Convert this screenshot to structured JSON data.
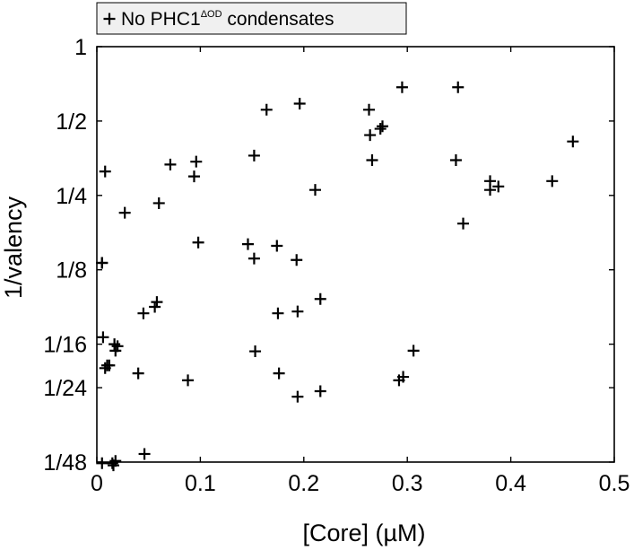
{
  "chart_data": {
    "type": "scatter",
    "xlabel": "[Core] (µM)",
    "ylabel": "1/valency",
    "xlim": [
      0,
      0.5
    ],
    "y_scale": "log",
    "y_tick_valency": [
      1,
      2,
      4,
      8,
      16,
      24,
      48
    ],
    "x_ticks": [
      "0",
      "0.1",
      "0.2",
      "0.3",
      "0.4",
      "0.5"
    ],
    "y_ticks": [
      "1",
      "1/2",
      "1/4",
      "1/8",
      "1/16",
      "1/24",
      "1/48"
    ],
    "grid": false,
    "legend": {
      "position": "top-left",
      "marker": "+",
      "text_before": "No PHC1",
      "superscript": "ΔOD",
      "text_after": " condensates"
    },
    "marker": "+",
    "color": "#000000",
    "series": [
      {
        "x": [
          0.005,
          0.015,
          0.016,
          0.018,
          0.046,
          0.006,
          0.008,
          0.01,
          0.012,
          0.017,
          0.02,
          0.018,
          0.04,
          0.088,
          0.153,
          0.176,
          0.194,
          0.216,
          0.292,
          0.296,
          0.306,
          0.005,
          0.045,
          0.056,
          0.058,
          0.175,
          0.194,
          0.216,
          0.005,
          0.098,
          0.146,
          0.152,
          0.174,
          0.193,
          0.027,
          0.06,
          0.008,
          0.071,
          0.094,
          0.096,
          0.152,
          0.211,
          0.266,
          0.347,
          0.38,
          0.38,
          0.388,
          0.354,
          0.44,
          0.164,
          0.196,
          0.263,
          0.264,
          0.274,
          0.276,
          0.295,
          0.349,
          0.46
        ],
        "valency": [
          48.5,
          48.5,
          49.5,
          47.5,
          44.5,
          15.0,
          20.0,
          19.5,
          19.5,
          16.0,
          16.3,
          17.0,
          21.0,
          22.4,
          17.1,
          21.0,
          26.1,
          24.8,
          22.4,
          21.7,
          17.0,
          7.5,
          12.0,
          11.3,
          10.8,
          12.0,
          11.8,
          10.5,
          7.5,
          6.2,
          6.3,
          7.2,
          6.4,
          7.3,
          4.7,
          4.3,
          3.2,
          3.0,
          3.35,
          2.92,
          2.76,
          3.8,
          2.88,
          2.88,
          3.5,
          3.8,
          3.68,
          5.2,
          3.5,
          1.8,
          1.7,
          1.8,
          2.28,
          2.15,
          2.1,
          1.46,
          1.46,
          2.42
        ]
      }
    ]
  }
}
